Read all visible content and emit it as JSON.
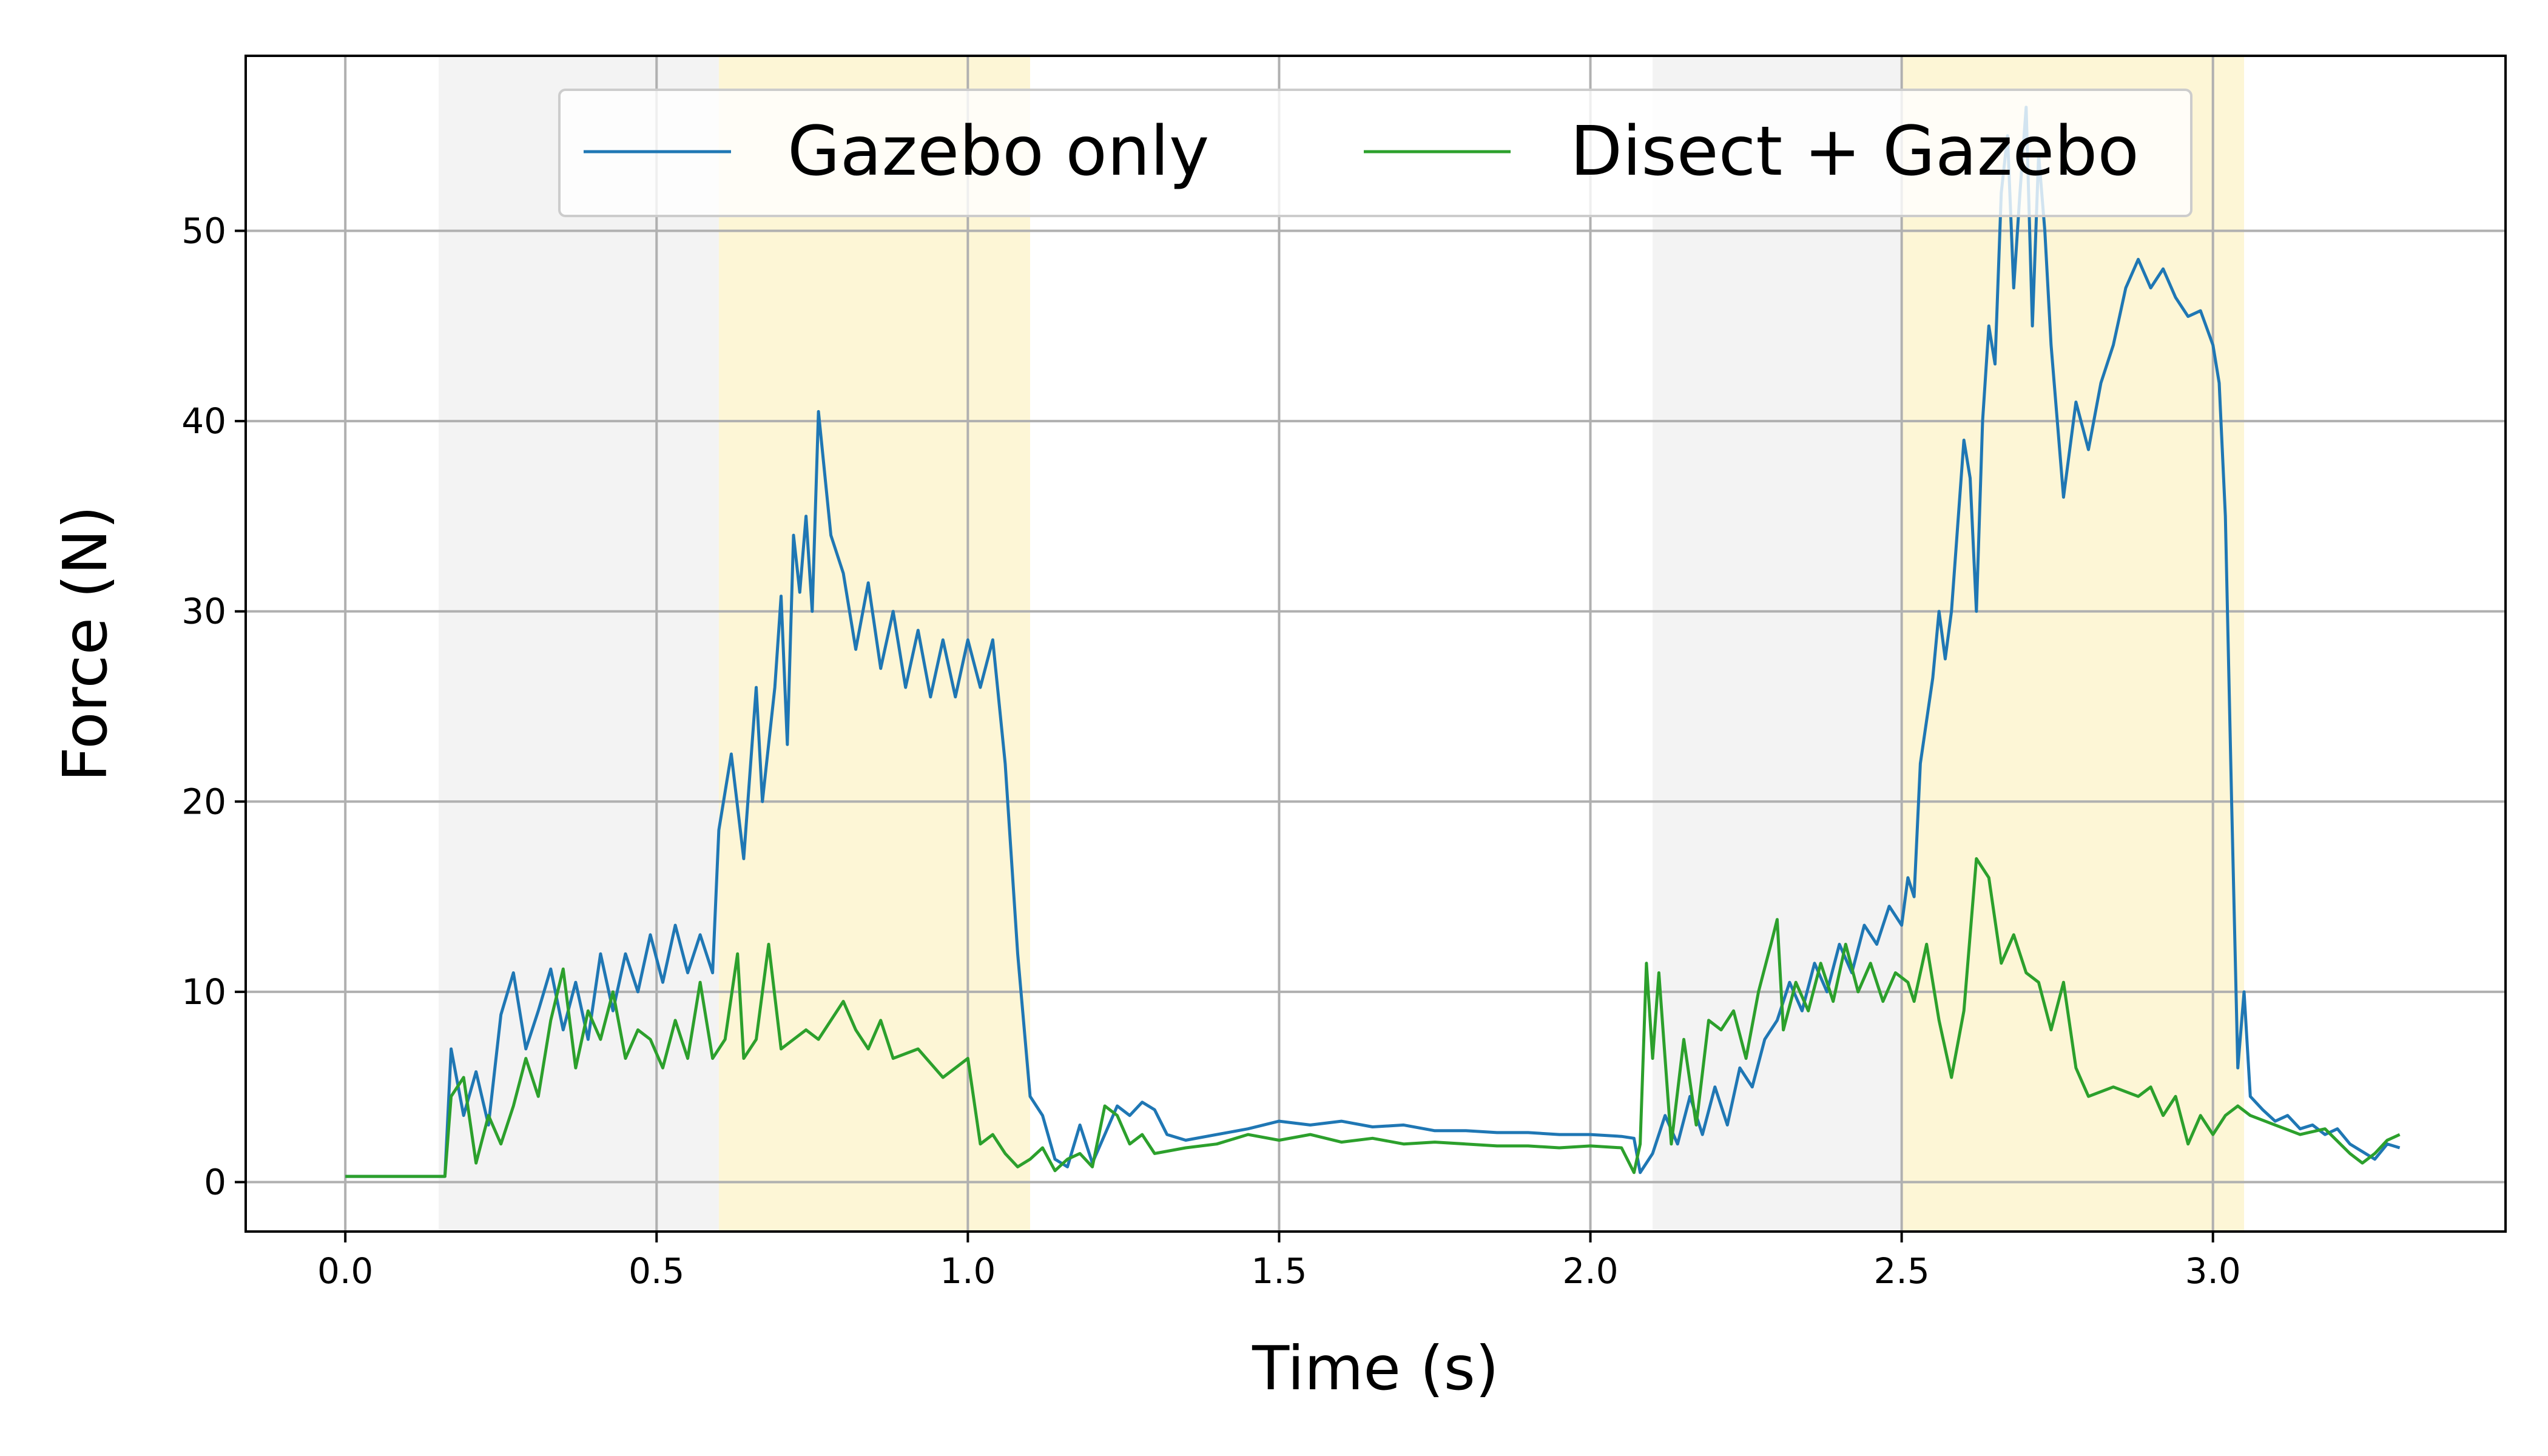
{
  "chart_data": {
    "type": "line",
    "xlabel": "Time (s)",
    "ylabel": "Force (N)",
    "xlim": [
      -0.16,
      3.47
    ],
    "ylim": [
      -2.6,
      59.2
    ],
    "xticks": [
      0.0,
      0.5,
      1.0,
      1.5,
      2.0,
      2.5,
      3.0
    ],
    "xtick_labels": [
      "0.0",
      "0.5",
      "1.0",
      "1.5",
      "2.0",
      "2.5",
      "3.0"
    ],
    "yticks": [
      0,
      10,
      20,
      30,
      40,
      50
    ],
    "ytick_labels": [
      "0",
      "10",
      "20",
      "30",
      "40",
      "50"
    ],
    "grid": true,
    "legend": {
      "placement": "upper-center",
      "columns": 2
    },
    "shaded_regions": [
      {
        "x0": 0.15,
        "x1": 0.6,
        "color": "#f2f2f2"
      },
      {
        "x0": 0.6,
        "x1": 1.1,
        "color": "#fdf5d2"
      },
      {
        "x0": 2.1,
        "x1": 2.5,
        "color": "#f2f2f2"
      },
      {
        "x0": 2.5,
        "x1": 3.05,
        "color": "#fdf5d2"
      }
    ],
    "series": [
      {
        "name": "Gazebo only",
        "color": "#1f77b4",
        "points": [
          [
            0.0,
            0.3
          ],
          [
            0.05,
            0.3
          ],
          [
            0.1,
            0.3
          ],
          [
            0.16,
            0.3
          ],
          [
            0.17,
            7.0
          ],
          [
            0.19,
            3.5
          ],
          [
            0.21,
            5.8
          ],
          [
            0.23,
            3.0
          ],
          [
            0.25,
            8.8
          ],
          [
            0.27,
            11.0
          ],
          [
            0.29,
            7.0
          ],
          [
            0.31,
            9.0
          ],
          [
            0.33,
            11.2
          ],
          [
            0.35,
            8.0
          ],
          [
            0.37,
            10.5
          ],
          [
            0.39,
            7.5
          ],
          [
            0.41,
            12.0
          ],
          [
            0.43,
            9.0
          ],
          [
            0.45,
            12.0
          ],
          [
            0.47,
            10.0
          ],
          [
            0.49,
            13.0
          ],
          [
            0.51,
            10.5
          ],
          [
            0.53,
            13.5
          ],
          [
            0.55,
            11.0
          ],
          [
            0.57,
            13.0
          ],
          [
            0.59,
            11.0
          ],
          [
            0.6,
            18.5
          ],
          [
            0.62,
            22.5
          ],
          [
            0.64,
            17.0
          ],
          [
            0.65,
            21.5
          ],
          [
            0.66,
            26.0
          ],
          [
            0.67,
            20.0
          ],
          [
            0.69,
            26.0
          ],
          [
            0.7,
            30.8
          ],
          [
            0.71,
            23.0
          ],
          [
            0.72,
            34.0
          ],
          [
            0.73,
            31.0
          ],
          [
            0.74,
            35.0
          ],
          [
            0.75,
            30.0
          ],
          [
            0.76,
            40.5
          ],
          [
            0.78,
            34.0
          ],
          [
            0.8,
            32.0
          ],
          [
            0.82,
            28.0
          ],
          [
            0.84,
            31.5
          ],
          [
            0.86,
            27.0
          ],
          [
            0.88,
            30.0
          ],
          [
            0.9,
            26.0
          ],
          [
            0.92,
            29.0
          ],
          [
            0.94,
            25.5
          ],
          [
            0.96,
            28.5
          ],
          [
            0.98,
            25.5
          ],
          [
            1.0,
            28.5
          ],
          [
            1.02,
            26.0
          ],
          [
            1.04,
            28.5
          ],
          [
            1.06,
            22.0
          ],
          [
            1.08,
            12.0
          ],
          [
            1.1,
            4.5
          ],
          [
            1.12,
            3.5
          ],
          [
            1.14,
            1.2
          ],
          [
            1.16,
            0.8
          ],
          [
            1.18,
            3.0
          ],
          [
            1.2,
            1.0
          ],
          [
            1.22,
            2.5
          ],
          [
            1.24,
            4.0
          ],
          [
            1.26,
            3.5
          ],
          [
            1.28,
            4.2
          ],
          [
            1.3,
            3.8
          ],
          [
            1.32,
            2.5
          ],
          [
            1.35,
            2.2
          ],
          [
            1.4,
            2.5
          ],
          [
            1.45,
            2.8
          ],
          [
            1.5,
            3.2
          ],
          [
            1.55,
            3.0
          ],
          [
            1.6,
            3.2
          ],
          [
            1.65,
            2.9
          ],
          [
            1.7,
            3.0
          ],
          [
            1.75,
            2.7
          ],
          [
            1.8,
            2.7
          ],
          [
            1.85,
            2.6
          ],
          [
            1.9,
            2.6
          ],
          [
            1.95,
            2.5
          ],
          [
            2.0,
            2.5
          ],
          [
            2.05,
            2.4
          ],
          [
            2.07,
            2.3
          ],
          [
            2.08,
            0.5
          ],
          [
            2.1,
            1.5
          ],
          [
            2.12,
            3.5
          ],
          [
            2.14,
            2.0
          ],
          [
            2.16,
            4.5
          ],
          [
            2.18,
            2.5
          ],
          [
            2.2,
            5.0
          ],
          [
            2.22,
            3.0
          ],
          [
            2.24,
            6.0
          ],
          [
            2.26,
            5.0
          ],
          [
            2.28,
            7.5
          ],
          [
            2.3,
            8.5
          ],
          [
            2.32,
            10.5
          ],
          [
            2.34,
            9.0
          ],
          [
            2.36,
            11.5
          ],
          [
            2.38,
            10.0
          ],
          [
            2.4,
            12.5
          ],
          [
            2.42,
            11.0
          ],
          [
            2.44,
            13.5
          ],
          [
            2.46,
            12.5
          ],
          [
            2.48,
            14.5
          ],
          [
            2.5,
            13.5
          ],
          [
            2.51,
            16.0
          ],
          [
            2.52,
            15.0
          ],
          [
            2.53,
            22.0
          ],
          [
            2.55,
            26.5
          ],
          [
            2.56,
            30.0
          ],
          [
            2.57,
            27.5
          ],
          [
            2.58,
            30.0
          ],
          [
            2.6,
            39.0
          ],
          [
            2.61,
            37.0
          ],
          [
            2.62,
            30.0
          ],
          [
            2.63,
            40.0
          ],
          [
            2.64,
            45.0
          ],
          [
            2.65,
            43.0
          ],
          [
            2.66,
            52.0
          ],
          [
            2.67,
            55.0
          ],
          [
            2.68,
            47.0
          ],
          [
            2.69,
            52.0
          ],
          [
            2.7,
            56.5
          ],
          [
            2.71,
            45.0
          ],
          [
            2.72,
            54.0
          ],
          [
            2.73,
            50.0
          ],
          [
            2.74,
            44.0
          ],
          [
            2.76,
            36.0
          ],
          [
            2.78,
            41.0
          ],
          [
            2.8,
            38.5
          ],
          [
            2.82,
            42.0
          ],
          [
            2.84,
            44.0
          ],
          [
            2.86,
            47.0
          ],
          [
            2.88,
            48.5
          ],
          [
            2.9,
            47.0
          ],
          [
            2.92,
            48.0
          ],
          [
            2.94,
            46.5
          ],
          [
            2.96,
            45.5
          ],
          [
            2.98,
            45.8
          ],
          [
            3.0,
            44.0
          ],
          [
            3.01,
            42.0
          ],
          [
            3.02,
            35.0
          ],
          [
            3.03,
            20.0
          ],
          [
            3.04,
            6.0
          ],
          [
            3.05,
            10.0
          ],
          [
            3.06,
            4.5
          ],
          [
            3.08,
            3.8
          ],
          [
            3.1,
            3.2
          ],
          [
            3.12,
            3.5
          ],
          [
            3.14,
            2.8
          ],
          [
            3.16,
            3.0
          ],
          [
            3.18,
            2.5
          ],
          [
            3.2,
            2.8
          ],
          [
            3.22,
            2.0
          ],
          [
            3.24,
            1.6
          ],
          [
            3.26,
            1.2
          ],
          [
            3.28,
            2.0
          ],
          [
            3.3,
            1.8
          ]
        ]
      },
      {
        "name": "Disect + Gazebo",
        "color": "#2ca02c",
        "points": [
          [
            0.0,
            0.3
          ],
          [
            0.05,
            0.3
          ],
          [
            0.1,
            0.3
          ],
          [
            0.16,
            0.3
          ],
          [
            0.17,
            4.5
          ],
          [
            0.19,
            5.5
          ],
          [
            0.21,
            1.0
          ],
          [
            0.23,
            3.5
          ],
          [
            0.25,
            2.0
          ],
          [
            0.27,
            4.0
          ],
          [
            0.29,
            6.5
          ],
          [
            0.31,
            4.5
          ],
          [
            0.33,
            8.5
          ],
          [
            0.35,
            11.2
          ],
          [
            0.37,
            6.0
          ],
          [
            0.39,
            9.0
          ],
          [
            0.41,
            7.5
          ],
          [
            0.43,
            10.0
          ],
          [
            0.45,
            6.5
          ],
          [
            0.47,
            8.0
          ],
          [
            0.49,
            7.5
          ],
          [
            0.51,
            6.0
          ],
          [
            0.53,
            8.5
          ],
          [
            0.55,
            6.5
          ],
          [
            0.57,
            10.5
          ],
          [
            0.59,
            6.5
          ],
          [
            0.61,
            7.5
          ],
          [
            0.63,
            12.0
          ],
          [
            0.64,
            6.5
          ],
          [
            0.66,
            7.5
          ],
          [
            0.68,
            12.5
          ],
          [
            0.7,
            7.0
          ],
          [
            0.72,
            7.5
          ],
          [
            0.74,
            8.0
          ],
          [
            0.76,
            7.5
          ],
          [
            0.8,
            9.5
          ],
          [
            0.82,
            8.0
          ],
          [
            0.84,
            7.0
          ],
          [
            0.86,
            8.5
          ],
          [
            0.88,
            6.5
          ],
          [
            0.92,
            7.0
          ],
          [
            0.96,
            5.5
          ],
          [
            1.0,
            6.5
          ],
          [
            1.02,
            2.0
          ],
          [
            1.04,
            2.5
          ],
          [
            1.06,
            1.5
          ],
          [
            1.08,
            0.8
          ],
          [
            1.1,
            1.2
          ],
          [
            1.12,
            1.8
          ],
          [
            1.14,
            0.6
          ],
          [
            1.16,
            1.2
          ],
          [
            1.18,
            1.5
          ],
          [
            1.2,
            0.8
          ],
          [
            1.22,
            4.0
          ],
          [
            1.24,
            3.5
          ],
          [
            1.26,
            2.0
          ],
          [
            1.28,
            2.5
          ],
          [
            1.3,
            1.5
          ],
          [
            1.35,
            1.8
          ],
          [
            1.4,
            2.0
          ],
          [
            1.45,
            2.5
          ],
          [
            1.5,
            2.2
          ],
          [
            1.55,
            2.5
          ],
          [
            1.6,
            2.1
          ],
          [
            1.65,
            2.3
          ],
          [
            1.7,
            2.0
          ],
          [
            1.75,
            2.1
          ],
          [
            1.8,
            2.0
          ],
          [
            1.85,
            1.9
          ],
          [
            1.9,
            1.9
          ],
          [
            1.95,
            1.8
          ],
          [
            2.0,
            1.9
          ],
          [
            2.05,
            1.8
          ],
          [
            2.07,
            0.5
          ],
          [
            2.08,
            2.0
          ],
          [
            2.09,
            11.5
          ],
          [
            2.1,
            6.5
          ],
          [
            2.11,
            11.0
          ],
          [
            2.13,
            2.0
          ],
          [
            2.15,
            7.5
          ],
          [
            2.17,
            3.0
          ],
          [
            2.19,
            8.5
          ],
          [
            2.21,
            8.0
          ],
          [
            2.23,
            9.0
          ],
          [
            2.25,
            6.5
          ],
          [
            2.27,
            10.0
          ],
          [
            2.29,
            12.5
          ],
          [
            2.3,
            13.8
          ],
          [
            2.31,
            8.0
          ],
          [
            2.33,
            10.5
          ],
          [
            2.35,
            9.0
          ],
          [
            2.37,
            11.5
          ],
          [
            2.39,
            9.5
          ],
          [
            2.41,
            12.5
          ],
          [
            2.43,
            10.0
          ],
          [
            2.45,
            11.5
          ],
          [
            2.47,
            9.5
          ],
          [
            2.49,
            11.0
          ],
          [
            2.51,
            10.5
          ],
          [
            2.52,
            9.5
          ],
          [
            2.54,
            12.5
          ],
          [
            2.56,
            8.5
          ],
          [
            2.58,
            5.5
          ],
          [
            2.6,
            9.0
          ],
          [
            2.62,
            17.0
          ],
          [
            2.64,
            16.0
          ],
          [
            2.66,
            11.5
          ],
          [
            2.68,
            13.0
          ],
          [
            2.7,
            11.0
          ],
          [
            2.72,
            10.5
          ],
          [
            2.74,
            8.0
          ],
          [
            2.76,
            10.5
          ],
          [
            2.78,
            6.0
          ],
          [
            2.8,
            4.5
          ],
          [
            2.84,
            5.0
          ],
          [
            2.88,
            4.5
          ],
          [
            2.9,
            5.0
          ],
          [
            2.92,
            3.5
          ],
          [
            2.94,
            4.5
          ],
          [
            2.96,
            2.0
          ],
          [
            2.98,
            3.5
          ],
          [
            3.0,
            2.5
          ],
          [
            3.02,
            3.5
          ],
          [
            3.04,
            4.0
          ],
          [
            3.06,
            3.5
          ],
          [
            3.1,
            3.0
          ],
          [
            3.14,
            2.5
          ],
          [
            3.18,
            2.8
          ],
          [
            3.22,
            1.5
          ],
          [
            3.24,
            1.0
          ],
          [
            3.26,
            1.5
          ],
          [
            3.28,
            2.2
          ],
          [
            3.3,
            2.5
          ]
        ]
      }
    ]
  }
}
